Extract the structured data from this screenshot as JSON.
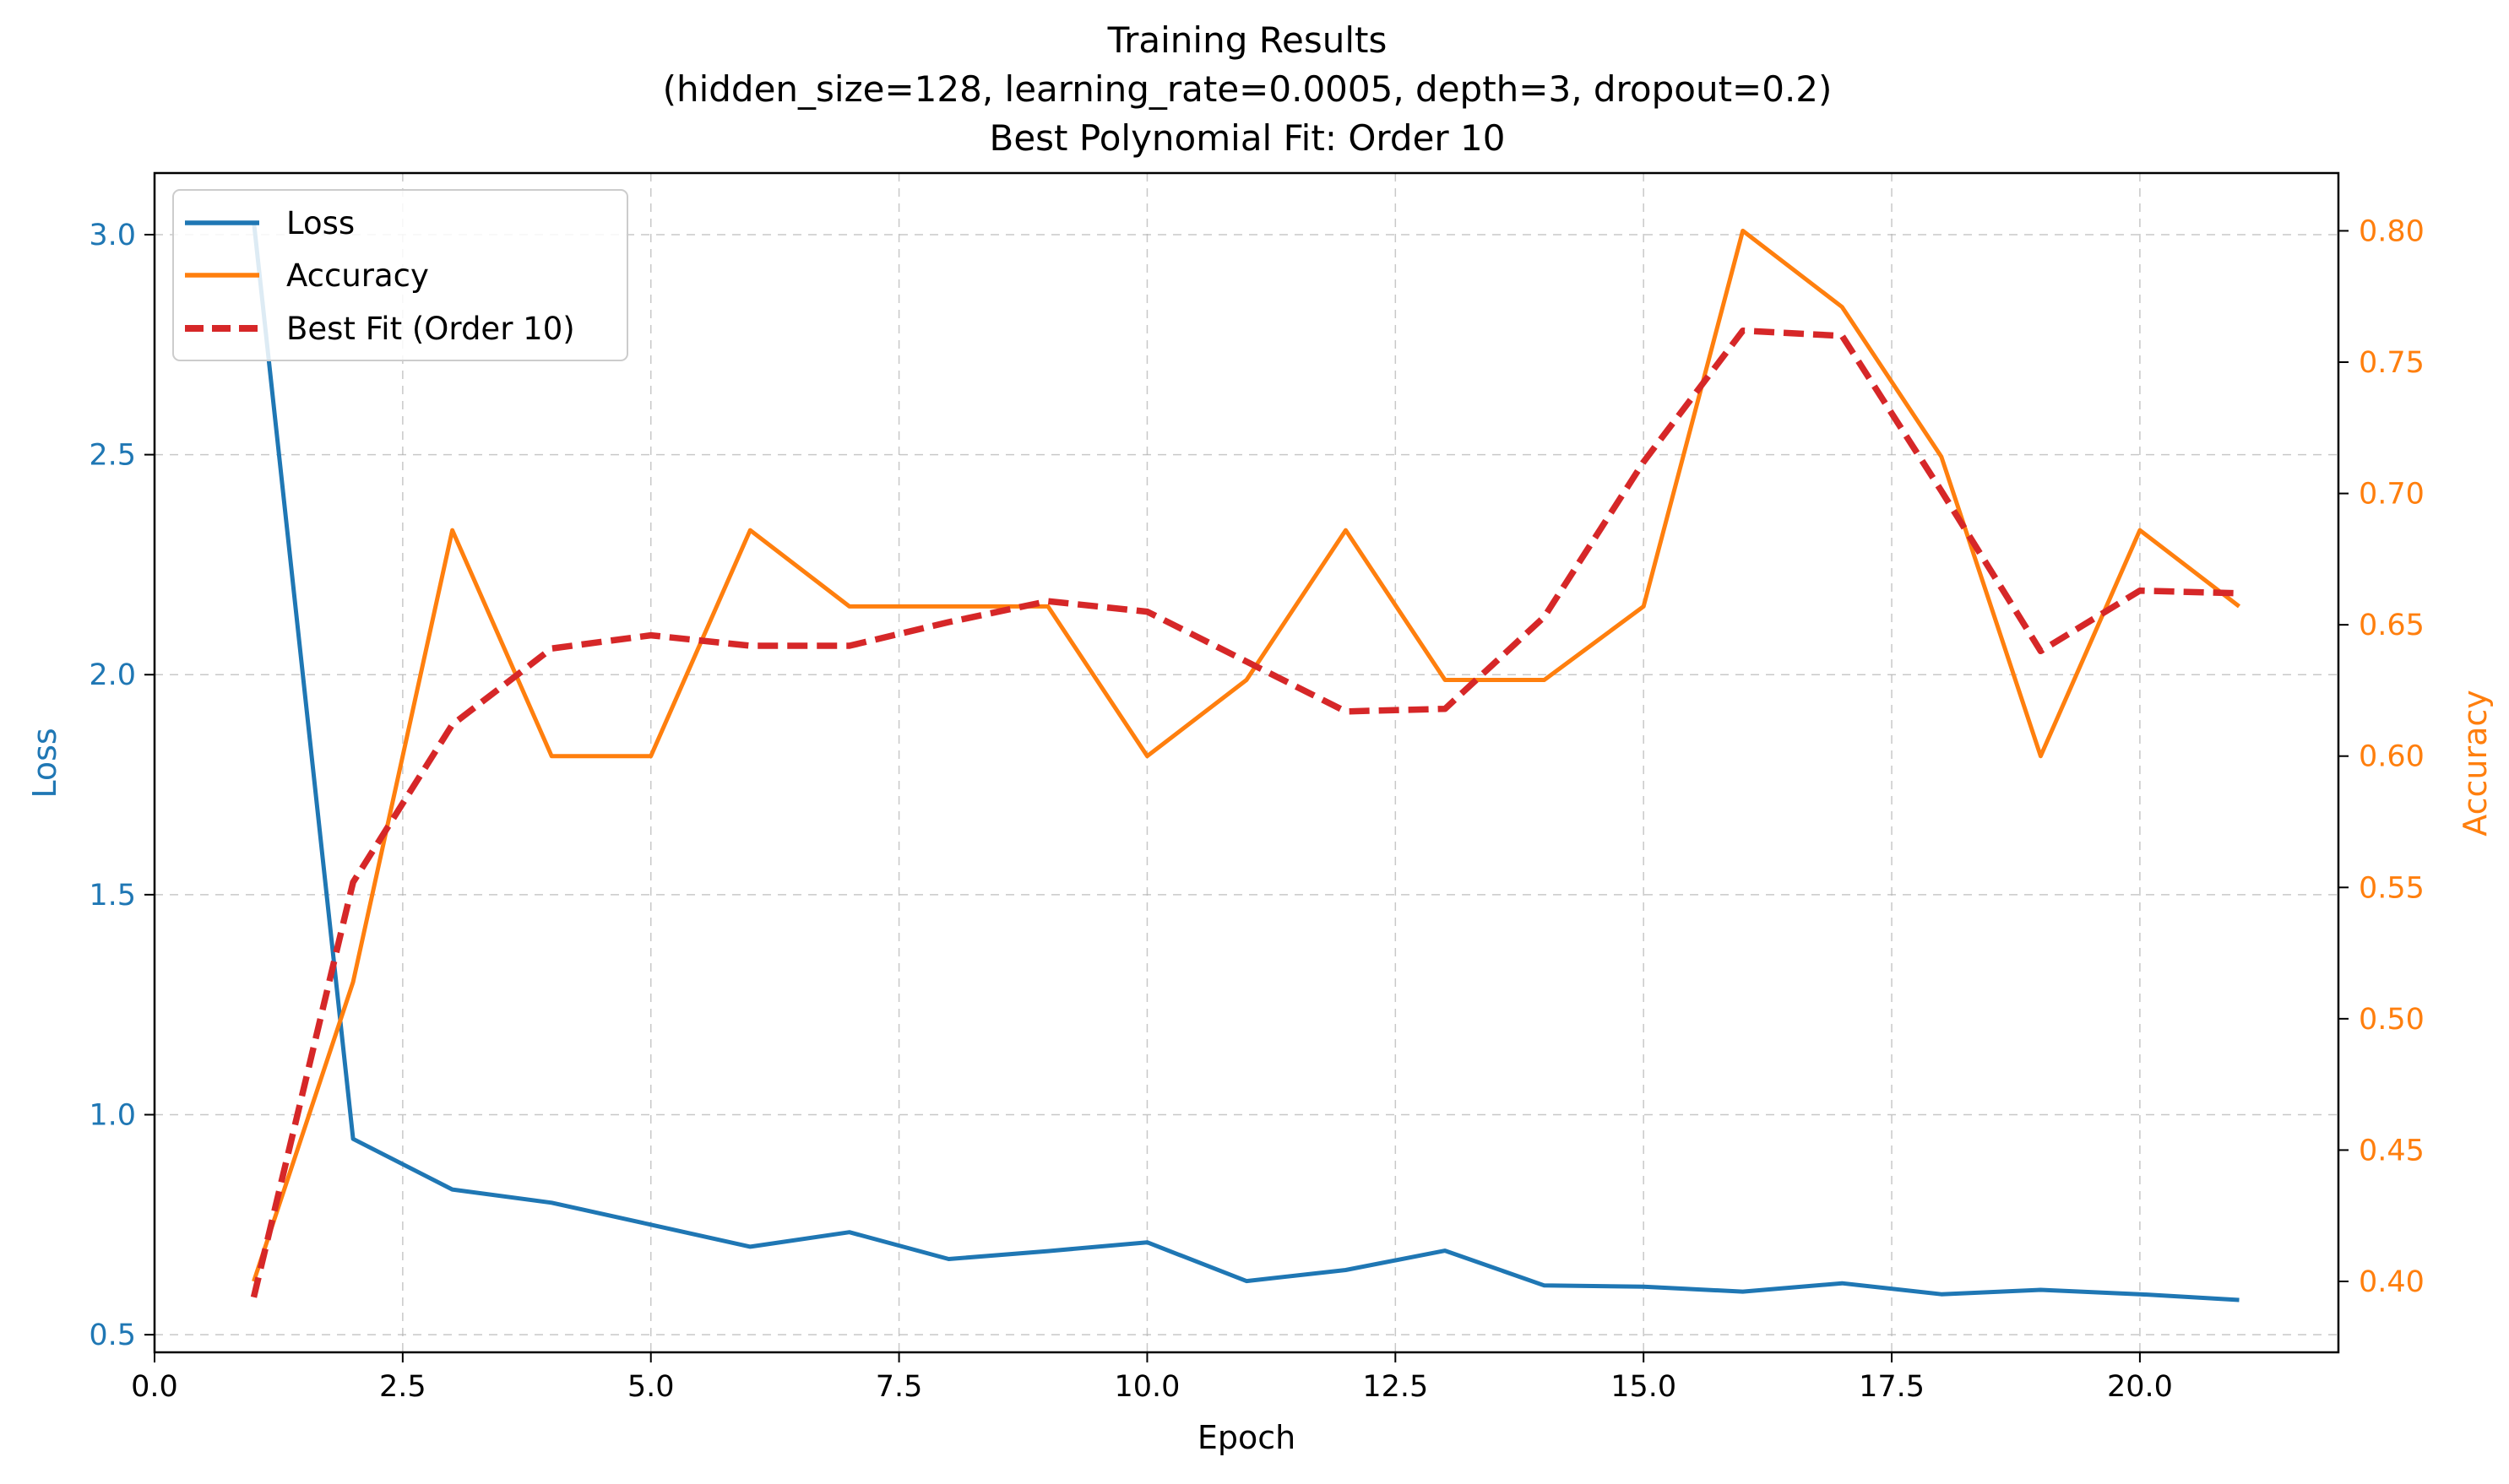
{
  "chart_data": {
    "type": "line",
    "title_lines": [
      "Training Results",
      "(hidden_size=128, learning_rate=0.0005, depth=3, dropout=0.2)",
      "Best Polynomial Fit: Order 10"
    ],
    "xlabel": "Epoch",
    "ylabel_left": "Loss",
    "ylabel_right": "Accuracy",
    "xlim": [
      0,
      22
    ],
    "ylim_left": [
      0.46,
      3.14
    ],
    "ylim_right": [
      0.373,
      0.822
    ],
    "x_ticks": [
      0,
      2.5,
      5,
      7.5,
      10,
      12.5,
      15,
      17.5,
      20
    ],
    "x_tick_labels": [
      "0.0",
      "2.5",
      "5.0",
      "7.5",
      "10.0",
      "12.5",
      "15.0",
      "17.5",
      "20.0"
    ],
    "y_left_ticks": [
      0.5,
      1.0,
      1.5,
      2.0,
      2.5,
      3.0
    ],
    "y_left_tick_labels": [
      "0.5",
      "1.0",
      "1.5",
      "2.0",
      "2.5",
      "3.0"
    ],
    "y_right_ticks": [
      0.4,
      0.45,
      0.5,
      0.55,
      0.6,
      0.65,
      0.7,
      0.75,
      0.8
    ],
    "y_right_tick_labels": [
      "0.40",
      "0.45",
      "0.50",
      "0.55",
      "0.60",
      "0.65",
      "0.70",
      "0.75",
      "0.80"
    ],
    "grid": true,
    "legend_position": "top-left",
    "colors": {
      "loss": "#1f77b4",
      "accuracy": "#ff7f0e",
      "fit": "#d62728"
    },
    "x": [
      1,
      2,
      3,
      4,
      5,
      6,
      7,
      8,
      9,
      10,
      11,
      12,
      13,
      14,
      15,
      16,
      17,
      18,
      19,
      20,
      21
    ],
    "series": [
      {
        "name": "Loss",
        "axis": "left",
        "style": "solid",
        "values": [
          3.03,
          0.945,
          0.83,
          0.8,
          0.75,
          0.7,
          0.733,
          0.672,
          0.69,
          0.71,
          0.622,
          0.647,
          0.691,
          0.612,
          0.609,
          0.598,
          0.617,
          0.592,
          0.602,
          0.592,
          0.579
        ]
      },
      {
        "name": "Accuracy",
        "axis": "right",
        "style": "solid",
        "values": [
          0.4,
          0.514,
          0.686,
          0.6,
          0.6,
          0.686,
          0.657,
          0.657,
          0.657,
          0.6,
          0.629,
          0.686,
          0.629,
          0.629,
          0.657,
          0.8,
          0.771,
          0.714,
          0.6,
          0.686,
          0.657
        ]
      },
      {
        "name": "Best Fit (Order 10)",
        "axis": "right",
        "style": "dashed",
        "values": [
          0.394,
          0.552,
          0.612,
          0.641,
          0.646,
          0.642,
          0.642,
          0.651,
          0.659,
          0.655,
          0.636,
          0.617,
          0.618,
          0.653,
          0.712,
          0.762,
          0.76,
          0.701,
          0.64,
          0.663,
          0.662
        ]
      }
    ]
  }
}
